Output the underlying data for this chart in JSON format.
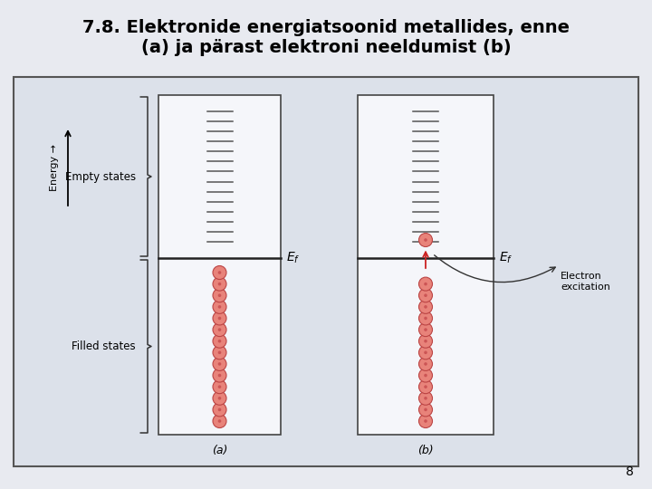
{
  "title_line1": "7.8. Elektronide energiatsoonid metallides, enne",
  "title_line2": "(a) ja pärast elektroni neeldumist (b)",
  "fig_bg": "#e8eaf0",
  "diagram_bg": "#dde1ea",
  "box_fill": "#f5f6fa",
  "box_edge": "#444444",
  "fermi_color": "#222222",
  "tick_color": "#555555",
  "electron_fill": "#e8837a",
  "electron_edge": "#bb4444",
  "electron_dot": "#cc5555",
  "page_number": "8",
  "panel_a_label": "(a)",
  "panel_b_label": "(b)",
  "energy_label": "Energy →",
  "empty_states_label": "Empty states",
  "filled_states_label": "Filled states",
  "electron_excitation_label": "Electron\nexcitation",
  "n_empty_ticks": 14,
  "n_filled_electrons": 14,
  "title_fontsize": 14,
  "label_fontsize": 9
}
